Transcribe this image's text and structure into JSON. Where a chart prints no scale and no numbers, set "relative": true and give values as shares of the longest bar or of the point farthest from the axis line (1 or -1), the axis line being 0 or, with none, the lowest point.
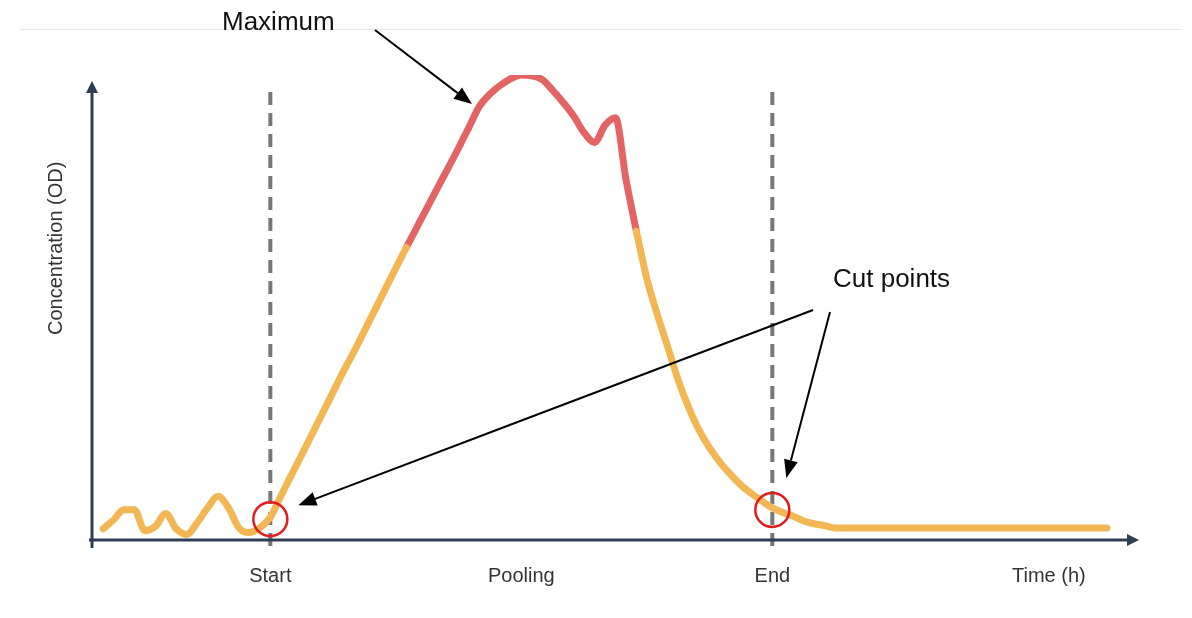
{
  "chart_data": {
    "type": "line",
    "relative": true,
    "ylabel": "Concentration (OD)",
    "xlabel": "Time (h)",
    "categories": [
      null,
      null,
      null,
      null,
      null,
      null,
      null,
      null,
      null,
      null,
      null,
      null,
      null,
      null,
      null,
      null,
      "Start",
      null,
      null,
      null,
      null,
      null,
      null,
      null,
      null,
      null,
      null,
      null,
      null,
      null,
      null,
      null,
      null,
      null,
      null,
      null,
      null,
      null,
      null,
      null,
      "Pooling",
      null,
      null,
      null,
      null,
      null,
      null,
      null,
      null,
      null,
      null,
      null,
      null,
      null,
      null,
      null,
      null,
      null,
      null,
      null,
      null,
      null,
      null,
      null,
      "End",
      null,
      null,
      null,
      null,
      null,
      null,
      null,
      null,
      null,
      null,
      null,
      null,
      null,
      null,
      null,
      null,
      null,
      null,
      null,
      null,
      null,
      null,
      null,
      null,
      null,
      null,
      null,
      null,
      null,
      null,
      null,
      null
    ],
    "series": [
      {
        "color": "#f2b654",
        "values": [
          0.024,
          0.043,
          0.065,
          0.065,
          0.02,
          0.029,
          0.057,
          0.024,
          0.012,
          0.037,
          0.069,
          0.094,
          0.069,
          0.026,
          0.016,
          0.026,
          0.049,
          0.094,
          0.139,
          0.183,
          0.228,
          0.273,
          0.318,
          0.363,
          0.405,
          0.45,
          0.495,
          0.54,
          0.585,
          0.629,
          null,
          null,
          null,
          null,
          null,
          null,
          null,
          null,
          null,
          null,
          null,
          null,
          null,
          null,
          null,
          null,
          null,
          null,
          null,
          null,
          null,
          0.664,
          0.562,
          0.485,
          0.415,
          0.344,
          0.285,
          0.236,
          0.198,
          0.167,
          0.141,
          0.118,
          0.1,
          0.084,
          0.069,
          0.059,
          0.051,
          0.041,
          0.035,
          0.031,
          0.026,
          0.026,
          0.026,
          0.026,
          0.026,
          0.026,
          0.026,
          0.026,
          0.026,
          0.026,
          0.026,
          0.026,
          0.026,
          0.026,
          0.026,
          0.026,
          0.026,
          0.026,
          0.026,
          0.026,
          0.026,
          0.026,
          0.026,
          0.026,
          0.026,
          0.026,
          0.026
        ]
      },
      {
        "color": "#e46464",
        "values": [
          null,
          null,
          null,
          null,
          null,
          null,
          null,
          null,
          null,
          null,
          null,
          null,
          null,
          null,
          null,
          null,
          null,
          null,
          null,
          null,
          null,
          null,
          null,
          null,
          null,
          null,
          null,
          null,
          null,
          0.629,
          0.672,
          0.715,
          0.758,
          0.8,
          0.843,
          0.888,
          0.933,
          0.959,
          0.978,
          0.992,
          1,
          0.998,
          0.99,
          0.967,
          0.941,
          0.912,
          0.876,
          0.855,
          0.892,
          0.908,
          0.776,
          0.664,
          null,
          null,
          null,
          null,
          null,
          null,
          null,
          null,
          null,
          null,
          null,
          null,
          null,
          null,
          null,
          null,
          null,
          null,
          null,
          null,
          null,
          null,
          null,
          null,
          null,
          null,
          null,
          null,
          null,
          null,
          null,
          null,
          null,
          null,
          null,
          null,
          null,
          null,
          null,
          null,
          null,
          null,
          null,
          null,
          null
        ]
      }
    ],
    "ref_lines": [
      {
        "axis": "x",
        "value": "Start",
        "color": "#777777",
        "line_style": "dashed"
      },
      {
        "axis": "x",
        "value": "End",
        "color": "#777777",
        "line_style": "dashed"
      }
    ],
    "annotations": [
      "Maximum",
      "Cut points"
    ],
    "legend": false
  }
}
